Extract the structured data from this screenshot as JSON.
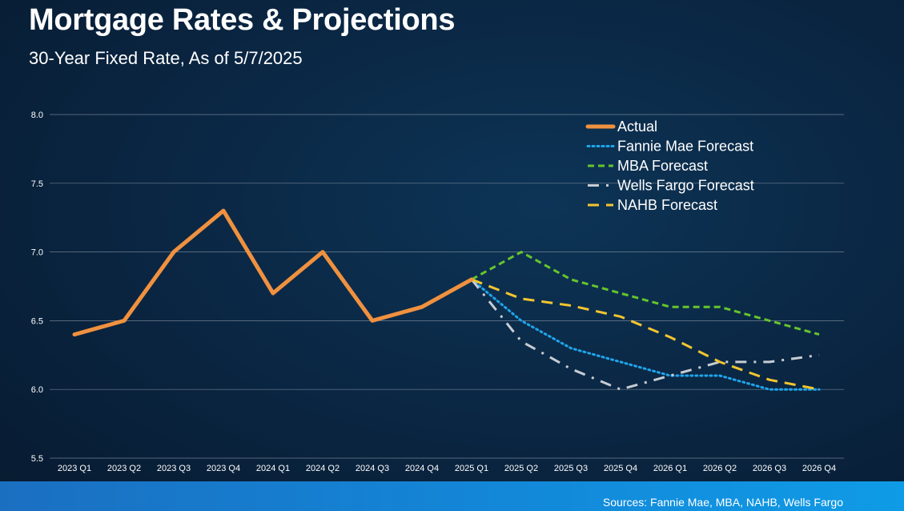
{
  "header": {
    "title": "Mortgage Rates & Projections",
    "subtitle": "30-Year Fixed Rate, As of 5/7/2025"
  },
  "footer": {
    "sources": "Sources: Fannie Mae, MBA, NAHB, Wells Fargo"
  },
  "chart_data": {
    "type": "line",
    "title": "",
    "xlabel": "",
    "ylabel": "",
    "ylim": [
      5.5,
      8.0
    ],
    "yticks": [
      "5.5",
      "6.0",
      "6.5",
      "7.0",
      "7.5",
      "8.0"
    ],
    "grid": true,
    "legend_position": "top-right",
    "categories": [
      "2023 Q1",
      "2023 Q2",
      "2023 Q3",
      "2023 Q4",
      "2024 Q1",
      "2024 Q2",
      "2024 Q3",
      "2024 Q4",
      "2025 Q1",
      "2025 Q2",
      "2025 Q3",
      "2025 Q4",
      "2026 Q1",
      "2026 Q2",
      "2026 Q3",
      "2026 Q4"
    ],
    "series": [
      {
        "name": "Actual",
        "color": "#f0913f",
        "style": "solid",
        "values": [
          6.4,
          6.5,
          7.0,
          7.3,
          6.7,
          7.0,
          6.5,
          6.6,
          6.8,
          null,
          null,
          null,
          null,
          null,
          null,
          null
        ]
      },
      {
        "name": "Fannie Mae Forecast",
        "color": "#1fa5ec",
        "style": "dotted",
        "values": [
          null,
          null,
          null,
          null,
          null,
          null,
          null,
          null,
          6.8,
          6.5,
          6.3,
          6.2,
          6.1,
          6.1,
          6.0,
          6.0
        ]
      },
      {
        "name": "MBA Forecast",
        "color": "#66c52c",
        "style": "dashed",
        "values": [
          null,
          null,
          null,
          null,
          null,
          null,
          null,
          null,
          6.8,
          7.0,
          6.8,
          6.7,
          6.6,
          6.6,
          6.5,
          6.4
        ]
      },
      {
        "name": "Wells Fargo Forecast",
        "color": "#c7ccd2",
        "style": "dashdot",
        "values": [
          null,
          null,
          null,
          null,
          null,
          null,
          null,
          null,
          6.8,
          6.35,
          6.15,
          6.0,
          6.1,
          6.2,
          6.2,
          6.25
        ]
      },
      {
        "name": "NAHB Forecast",
        "color": "#f3c52f",
        "style": "longdash",
        "values": [
          null,
          null,
          null,
          null,
          null,
          null,
          null,
          null,
          6.8,
          6.66,
          6.61,
          6.53,
          6.38,
          6.2,
          6.07,
          6.0
        ]
      }
    ]
  }
}
